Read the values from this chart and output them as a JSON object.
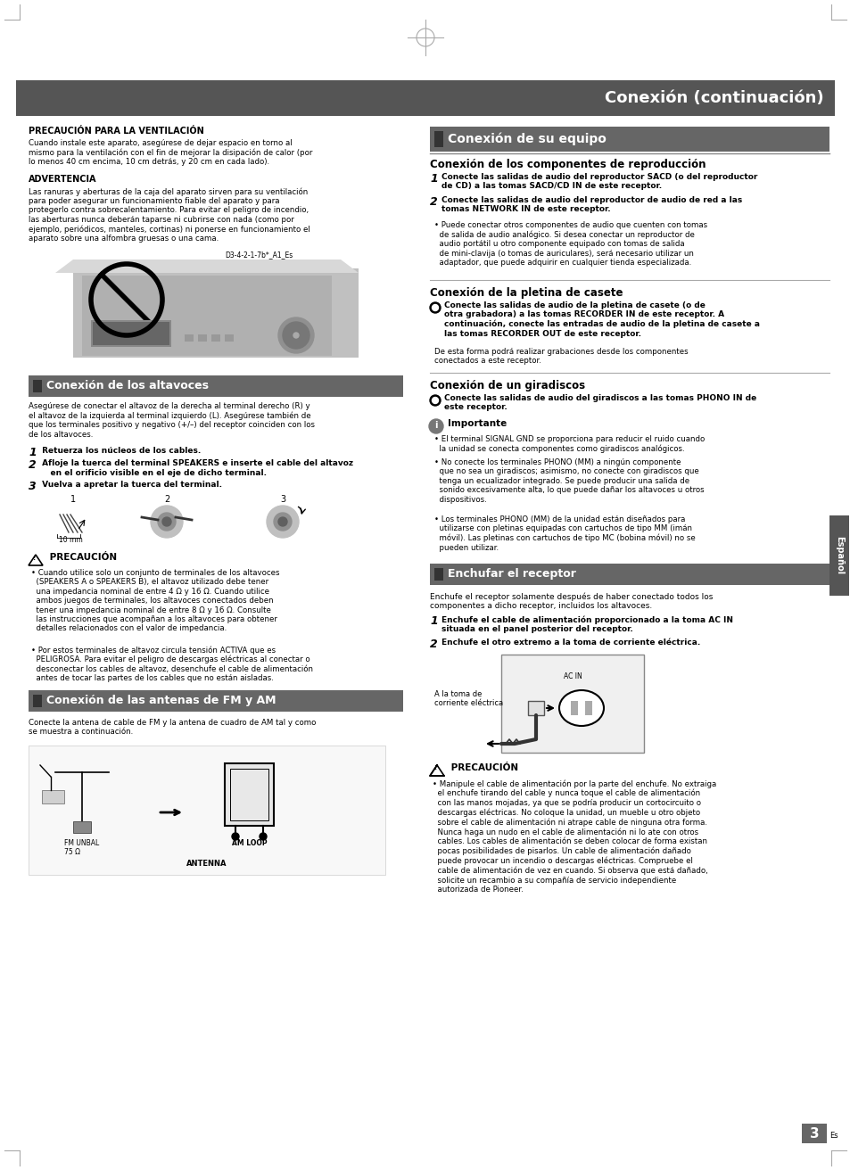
{
  "page_bg": "#ffffff",
  "header_bg": "#555555",
  "header_text": "Conexión (continuación)",
  "header_text_color": "#ffffff",
  "section_header_bg": "#666666",
  "section_header_text_color": "#ffffff",
  "section_small_rect_color": "#444444",
  "espanol_tab_color": "#555555",
  "espanol_tab_text": "Español",
  "page_number": "3",
  "mark_color": "#aaaaaa"
}
